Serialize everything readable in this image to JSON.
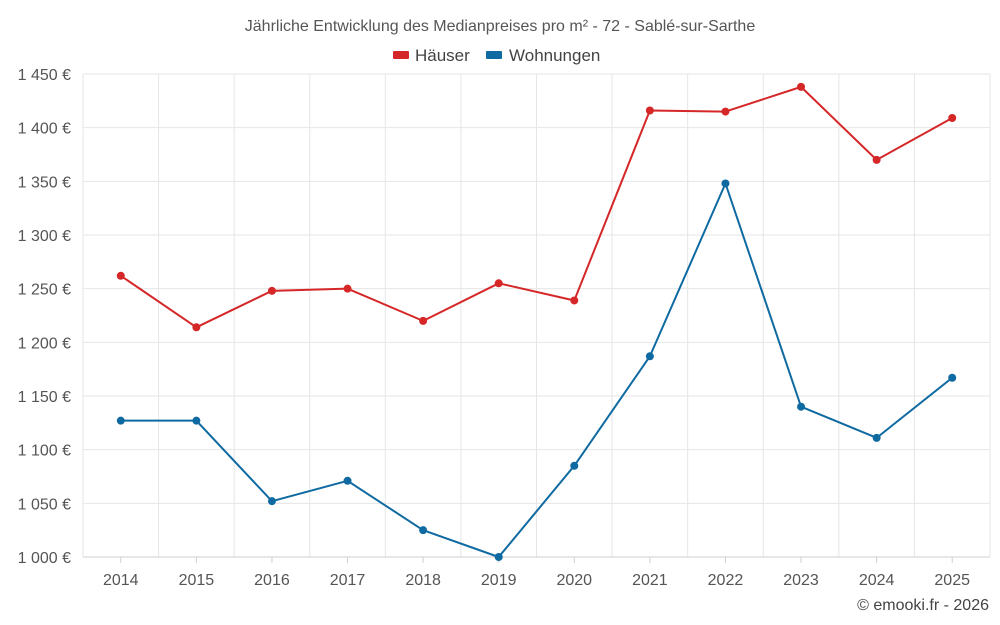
{
  "chart_data": {
    "type": "line",
    "title": "Jährliche Entwicklung des Medianpreises pro m² - 72 - Sablé-sur-Sarthe",
    "categories": [
      "2014",
      "2015",
      "2016",
      "2017",
      "2018",
      "2019",
      "2020",
      "2021",
      "2022",
      "2023",
      "2024",
      "2025"
    ],
    "series": [
      {
        "name": "Häuser",
        "color": "#d62728",
        "values": [
          1262,
          1214,
          1248,
          1250,
          1220,
          1255,
          1239,
          1416,
          1415,
          1438,
          1370,
          1409
        ]
      },
      {
        "name": "Wohnungen",
        "color": "#0f6aa1",
        "values": [
          1127,
          1127,
          1052,
          1071,
          1025,
          1000,
          1085,
          1187,
          1348,
          1140,
          1111,
          1167
        ]
      }
    ],
    "yticks": [
      "1 000 €",
      "1 050 €",
      "1 100 €",
      "1 150 €",
      "1 200 €",
      "1 250 €",
      "1 300 €",
      "1 350 €",
      "1 400 €",
      "1 450 €"
    ],
    "ylim": [
      1000,
      1450
    ],
    "ystep": 50,
    "xlabel": "",
    "ylabel": "",
    "grid": true,
    "legend_position": "top-center",
    "credit": "© emooki.fr - 2026"
  }
}
